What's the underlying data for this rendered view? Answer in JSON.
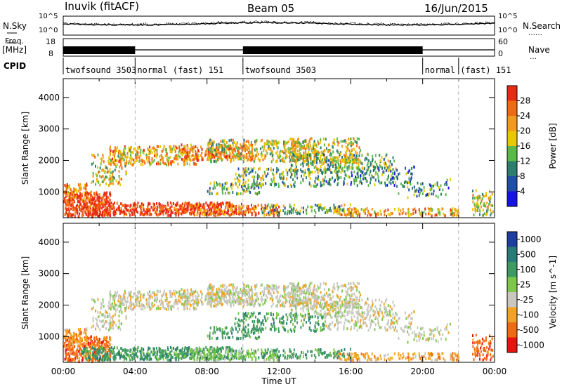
{
  "header": {
    "station": "Inuvik (fitACF)",
    "beam": "Beam 05",
    "date": "16/Jun/2015"
  },
  "panels": {
    "nsky_label": "N.Sky",
    "nsearch_label": "N.Search",
    "freq_label": "Freq.",
    "freq_unit": "[MHz]",
    "nave_label": "Nave",
    "cpid_label": "CPID",
    "noise_ticks": [
      "10^5",
      "10^0"
    ],
    "noise_ticks_right": [
      "10^5",
      "10^0"
    ],
    "freq_ticks": [
      "18",
      "8"
    ],
    "nave_ticks": [
      "60",
      "0"
    ]
  },
  "cpid_segments": [
    {
      "label": "twofsound 3503",
      "start_h": 0,
      "end_h": 4
    },
    {
      "label": "normal (fast) 151",
      "start_h": 4,
      "end_h": 10
    },
    {
      "label": "twofsound 3503",
      "start_h": 10,
      "end_h": 20
    },
    {
      "label": "normal (fast) 151",
      "start_h": 20,
      "end_h": 22
    }
  ],
  "colors": {
    "power": [
      "#1414e6",
      "#1f4ea6",
      "#2e7d6e",
      "#5cb848",
      "#e8c800",
      "#f39a1a",
      "#f26a10",
      "#e82a14"
    ],
    "velocity": [
      "#e81414",
      "#f26a10",
      "#f3a322",
      "#c8c8c0",
      "#7dc84a",
      "#3e9a60",
      "#2a7a78",
      "#1e3ea0"
    ]
  },
  "chart_data": [
    {
      "type": "heatmap",
      "name": "Power",
      "ylabel": "Slant Range [km]",
      "ylim": [
        180,
        4600
      ],
      "yticks": [
        "1000",
        "2000",
        "3000",
        "4000"
      ],
      "xlim": [
        0,
        24
      ],
      "colorbar_label": "Power [dB]",
      "colorbar_ticks": [
        "4",
        "8",
        "12",
        "16",
        "20",
        "24",
        "28"
      ]
    },
    {
      "type": "heatmap",
      "name": "Velocity",
      "ylabel": "Slant Range [km]",
      "ylim": [
        180,
        4600
      ],
      "yticks": [
        "1000",
        "2000",
        "3000",
        "4000"
      ],
      "xlim": [
        0,
        24
      ],
      "xlabel": "Time UT",
      "xticks": [
        "00:00",
        "04:00",
        "08:00",
        "12:00",
        "16:00",
        "20:00",
        "00:00"
      ],
      "colorbar_label": "Velocity [m s^-1]",
      "colorbar_ticks": [
        "-1000",
        "-500",
        "-100",
        "-25",
        "25",
        "100",
        "500",
        "1000"
      ]
    }
  ]
}
